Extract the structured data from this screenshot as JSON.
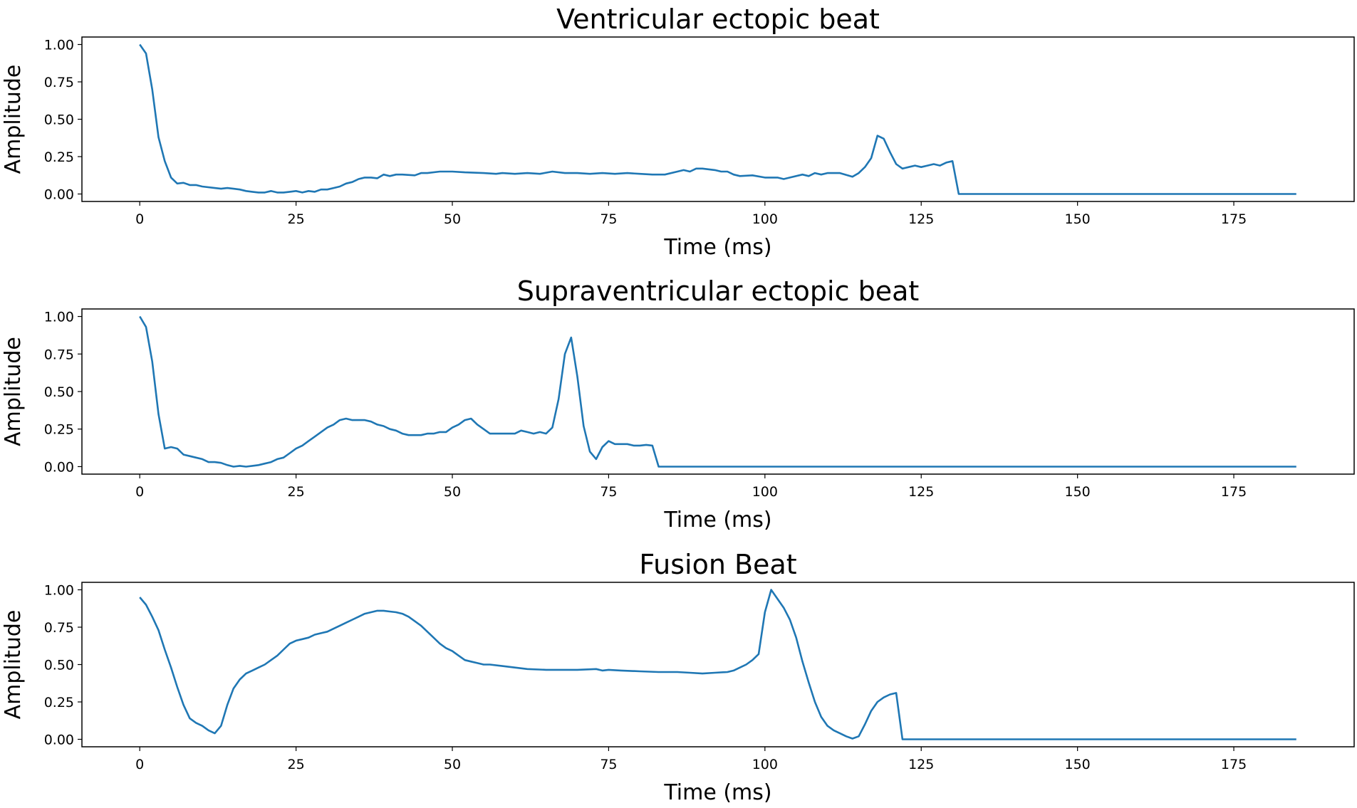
{
  "line_color": "#1f77b4",
  "chart_data": [
    {
      "type": "line",
      "title": "Ventricular ectopic beat",
      "xlabel": "Time (ms)",
      "ylabel": "Amplitude",
      "xlim": [
        -9.25,
        194.25
      ],
      "ylim": [
        -0.05,
        1.05
      ],
      "xticks": [
        "0",
        "25",
        "50",
        "75",
        "100",
        "125",
        "150",
        "175"
      ],
      "yticks": [
        "0.00",
        "0.25",
        "0.50",
        "0.75",
        "1.00"
      ],
      "grid": false,
      "x": [
        0,
        1,
        2,
        3,
        4,
        5,
        6,
        7,
        8,
        9,
        10,
        12,
        13,
        14,
        15,
        16,
        17,
        18,
        19,
        20,
        21,
        22,
        23,
        24,
        25,
        26,
        27,
        28,
        29,
        30,
        31,
        32,
        33,
        34,
        35,
        36,
        37,
        38,
        39,
        40,
        41,
        42,
        44,
        45,
        46,
        48,
        50,
        52,
        55,
        57,
        58,
        60,
        62,
        64,
        66,
        68,
        70,
        72,
        74,
        76,
        78,
        80,
        82,
        84,
        86,
        87,
        88,
        89,
        90,
        92,
        93,
        94,
        95,
        96,
        98,
        100,
        101,
        102,
        103,
        104,
        106,
        107,
        108,
        109,
        110,
        112,
        114,
        115,
        116,
        117,
        118,
        119,
        120,
        121,
        122,
        123,
        124,
        125,
        126,
        127,
        128,
        129,
        130,
        131,
        185
      ],
      "y": [
        1.0,
        0.94,
        0.7,
        0.38,
        0.22,
        0.11,
        0.07,
        0.075,
        0.06,
        0.06,
        0.05,
        0.04,
        0.035,
        0.04,
        0.035,
        0.03,
        0.02,
        0.015,
        0.01,
        0.01,
        0.02,
        0.01,
        0.01,
        0.015,
        0.02,
        0.01,
        0.02,
        0.015,
        0.03,
        0.03,
        0.04,
        0.05,
        0.07,
        0.08,
        0.1,
        0.11,
        0.11,
        0.105,
        0.13,
        0.12,
        0.13,
        0.13,
        0.125,
        0.14,
        0.14,
        0.15,
        0.15,
        0.145,
        0.14,
        0.135,
        0.14,
        0.135,
        0.14,
        0.135,
        0.15,
        0.14,
        0.14,
        0.135,
        0.14,
        0.135,
        0.14,
        0.135,
        0.13,
        0.13,
        0.15,
        0.16,
        0.15,
        0.17,
        0.17,
        0.16,
        0.15,
        0.15,
        0.13,
        0.12,
        0.125,
        0.11,
        0.11,
        0.11,
        0.1,
        0.11,
        0.13,
        0.12,
        0.14,
        0.13,
        0.14,
        0.14,
        0.115,
        0.14,
        0.18,
        0.24,
        0.39,
        0.37,
        0.28,
        0.2,
        0.17,
        0.18,
        0.19,
        0.18,
        0.19,
        0.2,
        0.19,
        0.21,
        0.22,
        0.0,
        0.0
      ]
    },
    {
      "type": "line",
      "title": "Supraventricular ectopic beat",
      "xlabel": "Time (ms)",
      "ylabel": "Amplitude",
      "xlim": [
        -9.25,
        194.25
      ],
      "ylim": [
        -0.05,
        1.05
      ],
      "xticks": [
        "0",
        "25",
        "50",
        "75",
        "100",
        "125",
        "150",
        "175"
      ],
      "yticks": [
        "0.00",
        "0.25",
        "0.50",
        "0.75",
        "1.00"
      ],
      "grid": false,
      "x": [
        0,
        1,
        2,
        3,
        4,
        5,
        6,
        7,
        8,
        9,
        10,
        11,
        12,
        13,
        14,
        15,
        16,
        17,
        18,
        19,
        20,
        21,
        22,
        23,
        24,
        25,
        26,
        27,
        28,
        29,
        30,
        31,
        32,
        33,
        34,
        35,
        36,
        37,
        38,
        39,
        40,
        41,
        42,
        43,
        44,
        45,
        46,
        47,
        48,
        49,
        50,
        51,
        52,
        53,
        54,
        55,
        56,
        57,
        58,
        59,
        60,
        61,
        62,
        63,
        64,
        65,
        66,
        67,
        68,
        69,
        70,
        71,
        72,
        73,
        74,
        75,
        76,
        77,
        78,
        79,
        80,
        81,
        82,
        83,
        185
      ],
      "y": [
        1.0,
        0.93,
        0.7,
        0.35,
        0.12,
        0.13,
        0.12,
        0.08,
        0.07,
        0.06,
        0.05,
        0.03,
        0.03,
        0.025,
        0.01,
        0.0,
        0.005,
        0.0,
        0.005,
        0.01,
        0.02,
        0.03,
        0.05,
        0.06,
        0.09,
        0.12,
        0.14,
        0.17,
        0.2,
        0.23,
        0.26,
        0.28,
        0.31,
        0.32,
        0.31,
        0.31,
        0.31,
        0.3,
        0.28,
        0.27,
        0.25,
        0.24,
        0.22,
        0.21,
        0.21,
        0.21,
        0.22,
        0.22,
        0.23,
        0.23,
        0.26,
        0.28,
        0.31,
        0.32,
        0.28,
        0.25,
        0.22,
        0.22,
        0.22,
        0.22,
        0.22,
        0.24,
        0.23,
        0.22,
        0.23,
        0.22,
        0.26,
        0.45,
        0.75,
        0.86,
        0.6,
        0.27,
        0.1,
        0.05,
        0.13,
        0.17,
        0.15,
        0.15,
        0.15,
        0.14,
        0.14,
        0.145,
        0.14,
        0.0,
        0.0
      ]
    },
    {
      "type": "line",
      "title": "Fusion Beat",
      "xlabel": "Time (ms)",
      "ylabel": "Amplitude",
      "xlim": [
        -9.25,
        194.25
      ],
      "ylim": [
        -0.05,
        1.05
      ],
      "xticks": [
        "0",
        "25",
        "50",
        "75",
        "100",
        "125",
        "150",
        "175"
      ],
      "yticks": [
        "0.00",
        "0.25",
        "0.50",
        "0.75",
        "1.00"
      ],
      "grid": false,
      "x": [
        0,
        1,
        2,
        3,
        4,
        5,
        6,
        7,
        8,
        9,
        10,
        11,
        12,
        13,
        14,
        15,
        16,
        17,
        18,
        19,
        20,
        21,
        22,
        23,
        24,
        25,
        26,
        27,
        28,
        29,
        30,
        31,
        32,
        33,
        34,
        35,
        36,
        37,
        38,
        39,
        40,
        41,
        42,
        43,
        44,
        45,
        46,
        47,
        48,
        49,
        50,
        51,
        52,
        53,
        54,
        55,
        56,
        58,
        60,
        62,
        65,
        68,
        70,
        73,
        74,
        75,
        77,
        80,
        83,
        86,
        88,
        90,
        92,
        94,
        95,
        96,
        97,
        98,
        99,
        100,
        101,
        102,
        103,
        104,
        105,
        106,
        107,
        108,
        109,
        110,
        111,
        112,
        113,
        114,
        115,
        116,
        117,
        118,
        119,
        120,
        121,
        122,
        185
      ],
      "y": [
        0.95,
        0.9,
        0.82,
        0.73,
        0.6,
        0.48,
        0.35,
        0.23,
        0.14,
        0.11,
        0.09,
        0.06,
        0.04,
        0.09,
        0.23,
        0.34,
        0.4,
        0.44,
        0.46,
        0.48,
        0.5,
        0.53,
        0.56,
        0.6,
        0.64,
        0.66,
        0.67,
        0.68,
        0.7,
        0.71,
        0.72,
        0.74,
        0.76,
        0.78,
        0.8,
        0.82,
        0.84,
        0.85,
        0.86,
        0.86,
        0.855,
        0.85,
        0.84,
        0.82,
        0.79,
        0.76,
        0.72,
        0.68,
        0.64,
        0.61,
        0.59,
        0.56,
        0.53,
        0.52,
        0.51,
        0.5,
        0.5,
        0.49,
        0.48,
        0.47,
        0.465,
        0.465,
        0.465,
        0.47,
        0.46,
        0.465,
        0.46,
        0.455,
        0.45,
        0.45,
        0.445,
        0.44,
        0.445,
        0.45,
        0.46,
        0.48,
        0.5,
        0.53,
        0.57,
        0.85,
        1.0,
        0.94,
        0.88,
        0.8,
        0.68,
        0.52,
        0.38,
        0.25,
        0.15,
        0.09,
        0.06,
        0.04,
        0.02,
        0.005,
        0.02,
        0.1,
        0.19,
        0.25,
        0.28,
        0.3,
        0.31,
        0.0,
        0.0
      ]
    }
  ]
}
